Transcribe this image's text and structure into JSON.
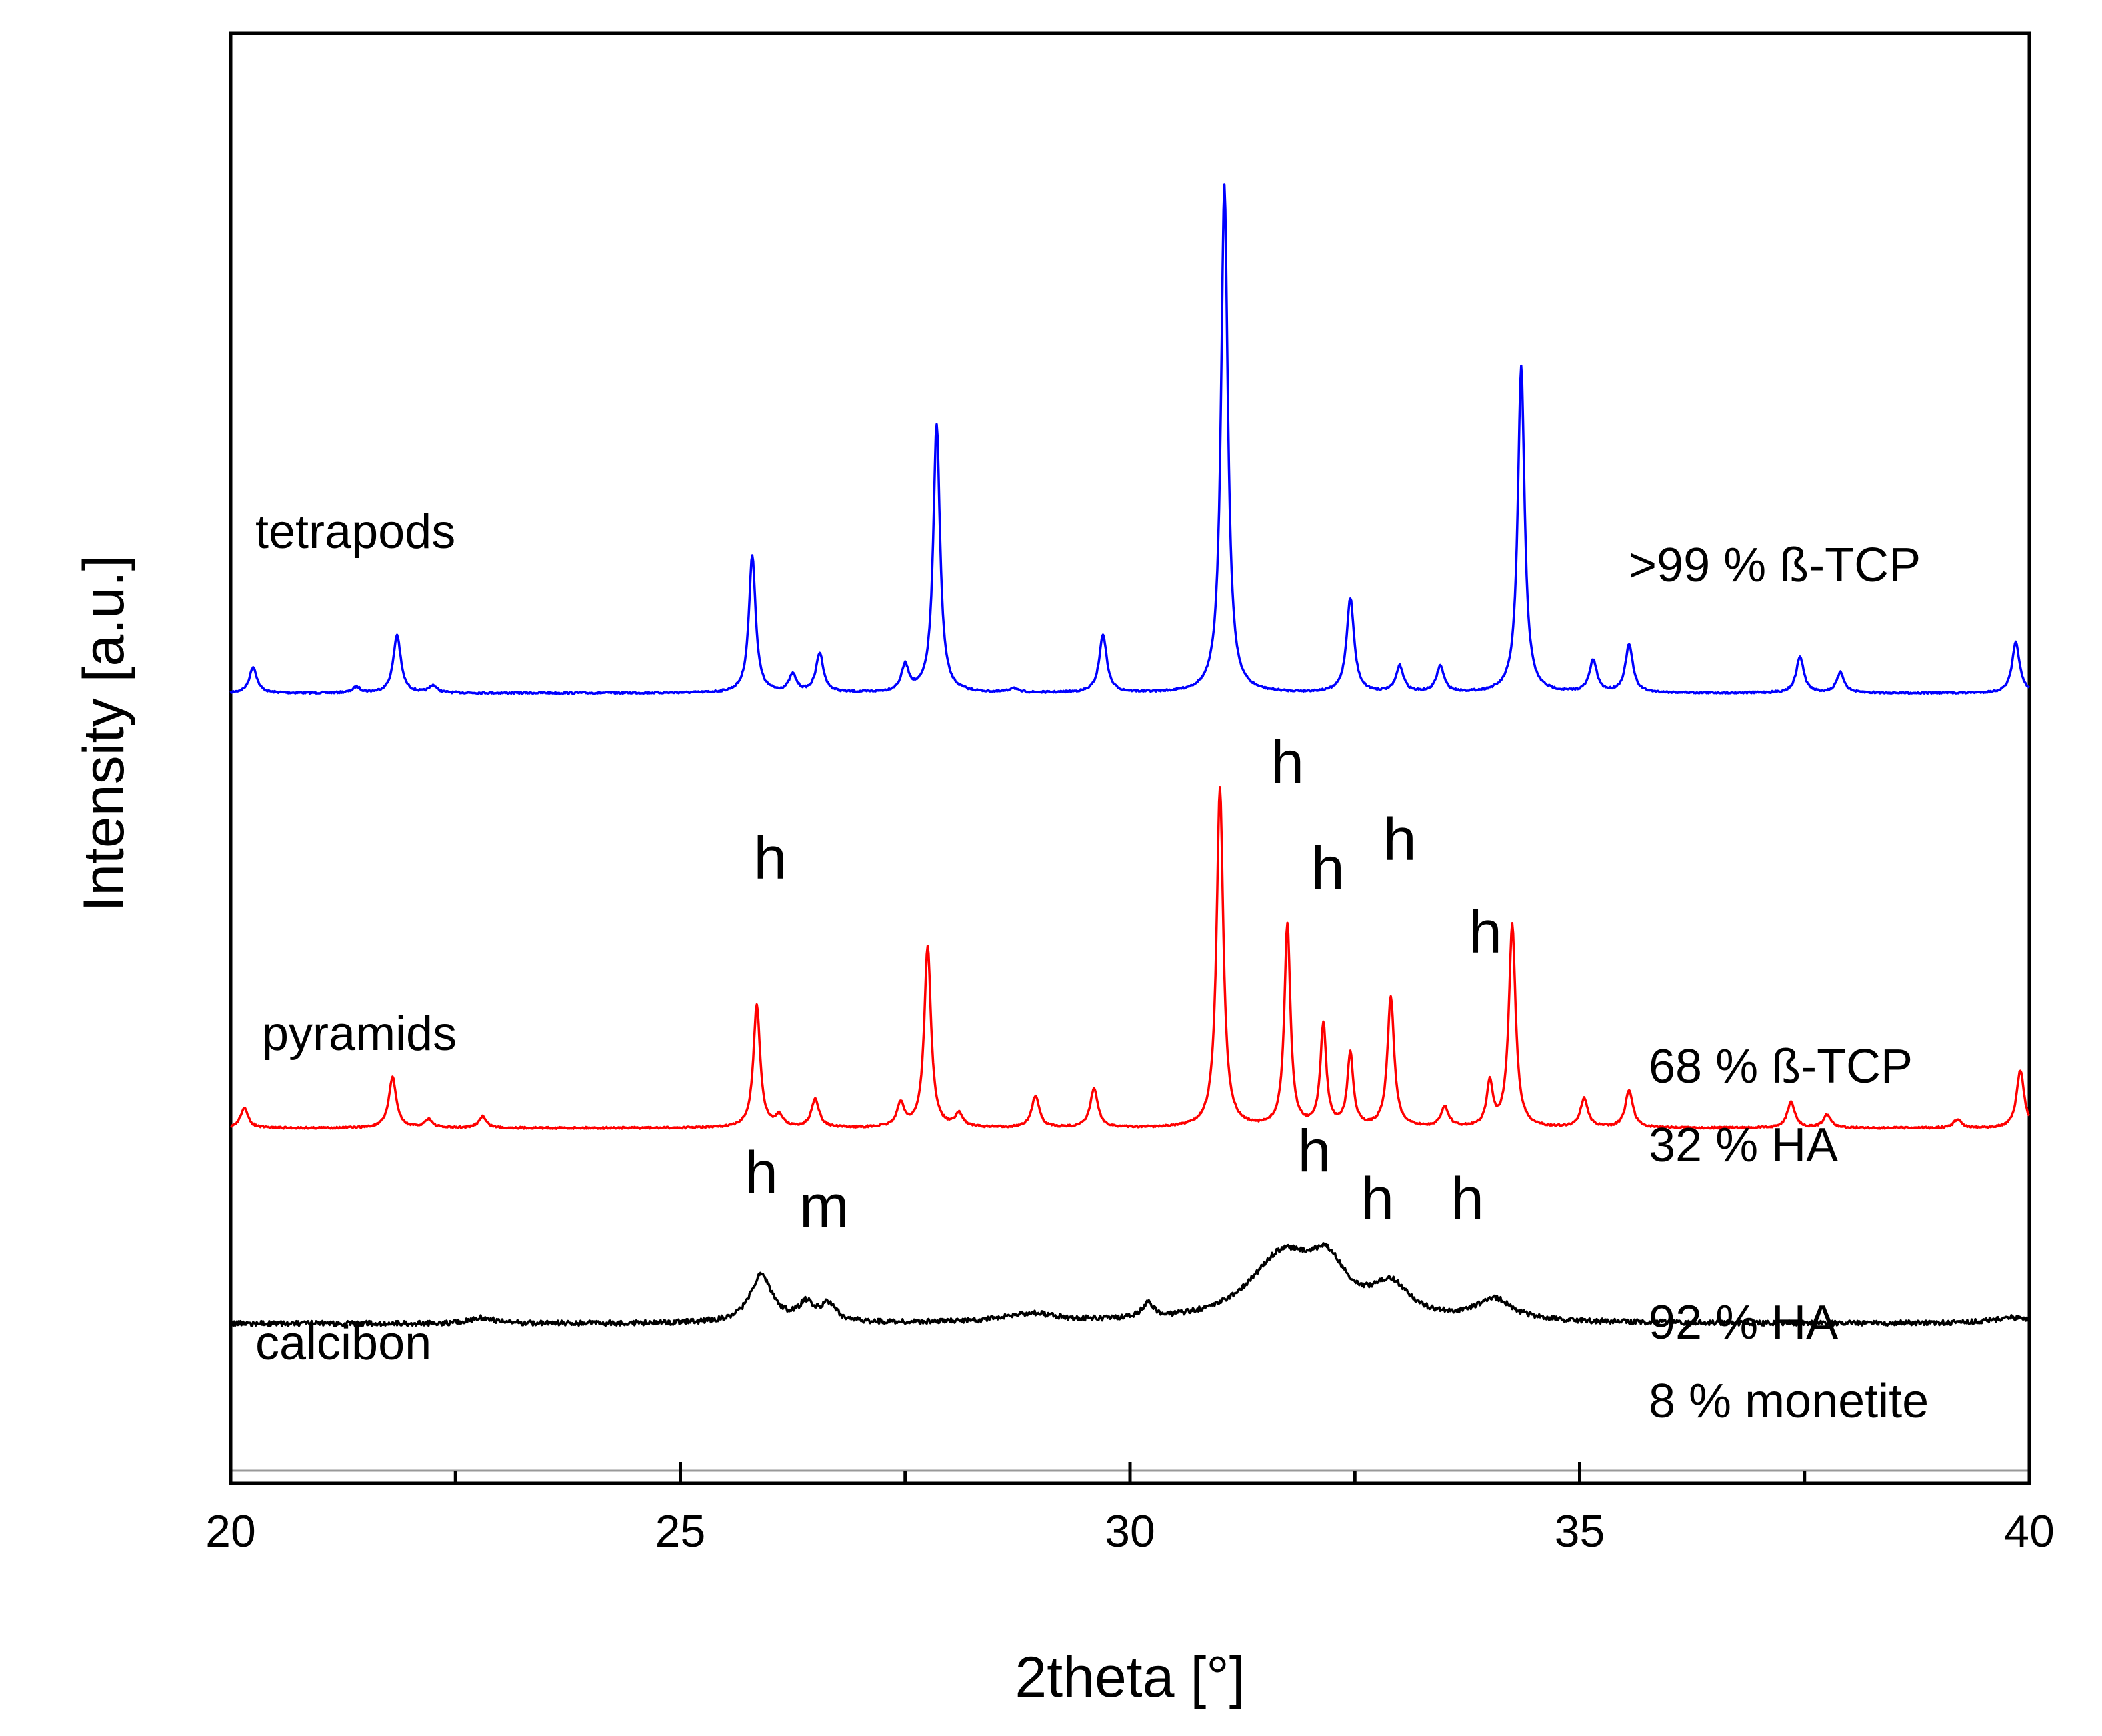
{
  "chart_data": {
    "type": "line",
    "title": "",
    "xlabel": "2theta [°]",
    "ylabel": "Intensity [a.u.]",
    "xlim": [
      20,
      40
    ],
    "xticks": [
      20,
      25,
      30,
      35,
      40
    ],
    "yticks": [],
    "grid": false,
    "ylim_relative": [
      0,
      1
    ],
    "series": [
      {
        "name": "tetrapods",
        "label": "tetrapods",
        "color": "#0000ff",
        "baseline": 0.455,
        "annotation_lines": [
          ">99 % ß-TCP"
        ],
        "peaks": [
          {
            "x": 20.25,
            "h": 0.018,
            "w": 0.05
          },
          {
            "x": 21.4,
            "h": 0.004,
            "w": 0.05
          },
          {
            "x": 21.85,
            "h": 0.04,
            "w": 0.05
          },
          {
            "x": 22.25,
            "h": 0.005,
            "w": 0.05
          },
          {
            "x": 25.8,
            "h": 0.095,
            "w": 0.045
          },
          {
            "x": 26.25,
            "h": 0.012,
            "w": 0.05
          },
          {
            "x": 26.55,
            "h": 0.027,
            "w": 0.05
          },
          {
            "x": 27.5,
            "h": 0.018,
            "w": 0.05
          },
          {
            "x": 27.85,
            "h": 0.185,
            "w": 0.045
          },
          {
            "x": 28.7,
            "h": 0.003,
            "w": 0.05
          },
          {
            "x": 29.7,
            "h": 0.04,
            "w": 0.05
          },
          {
            "x": 31.05,
            "h": 0.35,
            "w": 0.045
          },
          {
            "x": 32.45,
            "h": 0.065,
            "w": 0.05
          },
          {
            "x": 33.0,
            "h": 0.018,
            "w": 0.05
          },
          {
            "x": 33.45,
            "h": 0.018,
            "w": 0.05
          },
          {
            "x": 34.35,
            "h": 0.225,
            "w": 0.045
          },
          {
            "x": 35.15,
            "h": 0.022,
            "w": 0.05
          },
          {
            "x": 35.55,
            "h": 0.033,
            "w": 0.05
          },
          {
            "x": 37.45,
            "h": 0.025,
            "w": 0.05
          },
          {
            "x": 37.9,
            "h": 0.014,
            "w": 0.05
          },
          {
            "x": 39.85,
            "h": 0.035,
            "w": 0.05
          }
        ]
      },
      {
        "name": "pyramids",
        "label": "pyramids",
        "color": "#ff0000",
        "baseline": 0.755,
        "annotation_lines": [
          "68 % ß-TCP",
          "32 % HA"
        ],
        "peaks": [
          {
            "x": 20.15,
            "h": 0.014,
            "w": 0.05
          },
          {
            "x": 21.8,
            "h": 0.035,
            "w": 0.05
          },
          {
            "x": 22.2,
            "h": 0.006,
            "w": 0.05
          },
          {
            "x": 22.8,
            "h": 0.008,
            "w": 0.05
          },
          {
            "x": 25.85,
            "h": 0.085,
            "w": 0.045
          },
          {
            "x": 26.1,
            "h": 0.008,
            "w": 0.05
          },
          {
            "x": 26.5,
            "h": 0.02,
            "w": 0.05
          },
          {
            "x": 27.45,
            "h": 0.016,
            "w": 0.05
          },
          {
            "x": 27.75,
            "h": 0.125,
            "w": 0.045
          },
          {
            "x": 28.1,
            "h": 0.009,
            "w": 0.05
          },
          {
            "x": 28.95,
            "h": 0.022,
            "w": 0.05
          },
          {
            "x": 29.6,
            "h": 0.027,
            "w": 0.05
          },
          {
            "x": 31.0,
            "h": 0.235,
            "w": 0.045
          },
          {
            "x": 31.75,
            "h": 0.14,
            "w": 0.04
          },
          {
            "x": 32.15,
            "h": 0.07,
            "w": 0.04
          },
          {
            "x": 32.45,
            "h": 0.05,
            "w": 0.04
          },
          {
            "x": 32.9,
            "h": 0.09,
            "w": 0.045
          },
          {
            "x": 33.5,
            "h": 0.014,
            "w": 0.05
          },
          {
            "x": 34.0,
            "h": 0.03,
            "w": 0.04
          },
          {
            "x": 34.25,
            "h": 0.14,
            "w": 0.045
          },
          {
            "x": 35.05,
            "h": 0.02,
            "w": 0.05
          },
          {
            "x": 35.55,
            "h": 0.026,
            "w": 0.05
          },
          {
            "x": 37.35,
            "h": 0.018,
            "w": 0.05
          },
          {
            "x": 37.75,
            "h": 0.009,
            "w": 0.05
          },
          {
            "x": 39.2,
            "h": 0.006,
            "w": 0.05
          },
          {
            "x": 39.9,
            "h": 0.04,
            "w": 0.05
          }
        ]
      },
      {
        "name": "calcibon",
        "label": "calcibon",
        "color": "#000000",
        "baseline": 0.89,
        "annotation_lines": [
          "92 % HA",
          "8 % monetite"
        ],
        "peaks": [
          {
            "x": 22.8,
            "h": 0.004,
            "w": 0.15
          },
          {
            "x": 25.9,
            "h": 0.033,
            "w": 0.15
          },
          {
            "x": 26.4,
            "h": 0.012,
            "w": 0.1
          },
          {
            "x": 26.65,
            "h": 0.012,
            "w": 0.1
          },
          {
            "x": 28.9,
            "h": 0.006,
            "w": 0.35
          },
          {
            "x": 30.2,
            "h": 0.01,
            "w": 0.08
          },
          {
            "x": 31.7,
            "h": 0.045,
            "w": 0.45
          },
          {
            "x": 32.2,
            "h": 0.03,
            "w": 0.25
          },
          {
            "x": 32.9,
            "h": 0.022,
            "w": 0.25
          },
          {
            "x": 34.05,
            "h": 0.015,
            "w": 0.25
          },
          {
            "x": 39.8,
            "h": 0.004,
            "w": 0.3
          }
        ]
      }
    ],
    "peak_labels": [
      {
        "series": "pyramids",
        "text": "h",
        "x": 26.0,
        "y_rel": 0.583
      },
      {
        "series": "pyramids",
        "text": "h",
        "x": 31.75,
        "y_rel": 0.517
      },
      {
        "series": "pyramids",
        "text": "h",
        "x": 32.2,
        "y_rel": 0.59
      },
      {
        "series": "pyramids",
        "text": "h",
        "x": 33.0,
        "y_rel": 0.57
      },
      {
        "series": "pyramids",
        "text": "h",
        "x": 33.95,
        "y_rel": 0.634
      },
      {
        "series": "calcibon",
        "text": "h",
        "x": 25.9,
        "y_rel": 0.8
      },
      {
        "series": "calcibon",
        "text": "m",
        "x": 26.6,
        "y_rel": 0.823
      },
      {
        "series": "calcibon",
        "text": "h",
        "x": 32.05,
        "y_rel": 0.785
      },
      {
        "series": "calcibon",
        "text": "h",
        "x": 32.75,
        "y_rel": 0.818
      },
      {
        "series": "calcibon",
        "text": "h",
        "x": 33.75,
        "y_rel": 0.818
      }
    ]
  }
}
